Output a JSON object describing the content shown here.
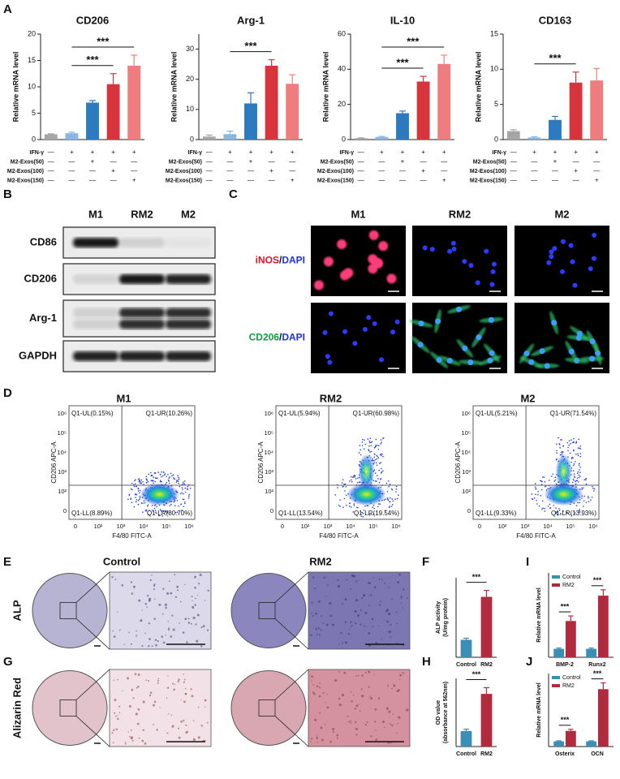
{
  "panel_labels": [
    "A",
    "B",
    "C",
    "D",
    "E",
    "F",
    "G",
    "H",
    "I",
    "J"
  ],
  "chart_data": [
    {
      "type": "bar",
      "title": "CD206",
      "ylabel": "Relative mRNA level",
      "categories": [
        null,
        null,
        null,
        null,
        null
      ],
      "values": [
        1,
        1.2,
        7,
        10.5,
        14
      ],
      "errors": [
        0.1,
        0.2,
        0.4,
        2,
        2
      ],
      "colors": [
        "#a6a6a6",
        "#8ab6e0",
        "#2c7bc0",
        "#d8343c",
        "#f07d7d"
      ],
      "ylim": [
        0,
        20
      ],
      "yticks": [
        0,
        5,
        10,
        15,
        20
      ],
      "condition_labels": [
        "IFN-γ",
        "M2-Exos(50)",
        "M2-Exos(100)",
        "M2-Exos(150)"
      ],
      "conditions": [
        [
          "—",
          "+",
          "+",
          "+",
          "+"
        ],
        [
          "—",
          "—",
          "+",
          "—",
          "—"
        ],
        [
          "—",
          "—",
          "—",
          "+",
          "—"
        ],
        [
          "—",
          "—",
          "—",
          "—",
          "+"
        ]
      ],
      "annotations": [
        {
          "text": "***",
          "from": 1,
          "to": 3
        },
        {
          "text": "***",
          "from": 1,
          "to": 4
        }
      ]
    },
    {
      "type": "bar",
      "title": "Arg-1",
      "ylabel": "Relative mRNA level",
      "categories": [
        null,
        null,
        null,
        null,
        null
      ],
      "values": [
        1,
        1.8,
        12,
        24.5,
        18.5
      ],
      "errors": [
        0.5,
        1,
        3.5,
        2,
        3
      ],
      "colors": [
        "#a6a6a6",
        "#8ab6e0",
        "#2c7bc0",
        "#d8343c",
        "#f07d7d"
      ],
      "ylim": [
        0,
        35
      ],
      "yticks": [
        0,
        10,
        20,
        30
      ],
      "condition_labels": [
        "IFN-γ",
        "M2-Exos(50)",
        "M2-Exos(100)",
        "M2-Exos(150)"
      ],
      "conditions": [
        [
          "—",
          "+",
          "+",
          "+",
          "+"
        ],
        [
          "—",
          "—",
          "+",
          "—",
          "—"
        ],
        [
          "—",
          "—",
          "—",
          "+",
          "—"
        ],
        [
          "—",
          "—",
          "—",
          "—",
          "+"
        ]
      ],
      "annotations": [
        {
          "text": "***",
          "from": 1,
          "to": 3
        }
      ]
    },
    {
      "type": "bar",
      "title": "IL-10",
      "ylabel": "Relative mRNA level",
      "categories": [
        null,
        null,
        null,
        null,
        null
      ],
      "values": [
        0.8,
        1.5,
        15,
        33,
        43
      ],
      "errors": [
        0.2,
        0.3,
        1.2,
        3,
        5
      ],
      "colors": [
        "#a6a6a6",
        "#8ab6e0",
        "#2c7bc0",
        "#d8343c",
        "#f07d7d"
      ],
      "ylim": [
        0,
        60
      ],
      "yticks": [
        0,
        20,
        40,
        60
      ],
      "condition_labels": [
        "IFN-γ",
        "M2-Exos(50)",
        "M2-Exos(100)",
        "M2-Exos(150)"
      ],
      "conditions": [
        [
          "—",
          "+",
          "+",
          "+",
          "+"
        ],
        [
          "—",
          "—",
          "+",
          "—",
          "—"
        ],
        [
          "—",
          "—",
          "—",
          "+",
          "—"
        ],
        [
          "—",
          "—",
          "—",
          "—",
          "+"
        ]
      ],
      "annotations": [
        {
          "text": "***",
          "from": 1,
          "to": 3
        },
        {
          "text": "***",
          "from": 1,
          "to": 4
        }
      ]
    },
    {
      "type": "bar",
      "title": "CD163",
      "ylabel": "Relative mRNA level",
      "categories": [
        null,
        null,
        null,
        null,
        null
      ],
      "values": [
        1.2,
        0.3,
        2.8,
        8.1,
        8.4
      ],
      "errors": [
        0.2,
        0.1,
        0.5,
        1.5,
        1.7
      ],
      "colors": [
        "#a6a6a6",
        "#8ab6e0",
        "#2c7bc0",
        "#d8343c",
        "#f07d7d"
      ],
      "ylim": [
        0,
        15
      ],
      "yticks": [
        0,
        5,
        10,
        15
      ],
      "condition_labels": [
        "IFN-γ",
        "M2-Exos(50)",
        "M2-Exos(100)",
        "M2-Exos(150)"
      ],
      "conditions": [
        [
          "—",
          "+",
          "+",
          "+",
          "+"
        ],
        [
          "—",
          "—",
          "+",
          "—",
          "—"
        ],
        [
          "—",
          "—",
          "—",
          "+",
          "—"
        ],
        [
          "—",
          "—",
          "—",
          "—",
          "+"
        ]
      ],
      "annotations": [
        {
          "text": "***",
          "from": 1,
          "to": 3
        }
      ]
    },
    {
      "type": "bar",
      "ylabel": [
        "ALP activity",
        "(U/mg protein)"
      ],
      "categories": [
        "Control",
        "RM2"
      ],
      "values": [
        5.5,
        19
      ],
      "errors": [
        0.5,
        2
      ],
      "colors": [
        "#3a8fb7",
        "#b22a3e"
      ],
      "ylim": [
        0,
        25
      ],
      "annotations": [
        {
          "text": "***",
          "from": 0,
          "to": 1
        }
      ]
    },
    {
      "type": "bar",
      "ylabel": [
        "OD value",
        "(absorbance at 562nm)"
      ],
      "categories": [
        "Control",
        "RM2"
      ],
      "values": [
        0.25,
        0.85
      ],
      "errors": [
        0.03,
        0.1
      ],
      "colors": [
        "#3a8fb7",
        "#b22a3e"
      ],
      "ylim": [
        0,
        1.1
      ],
      "annotations": [
        {
          "text": "***",
          "from": 0,
          "to": 1
        }
      ]
    },
    {
      "type": "bar",
      "ylabel": "Relative mRNA level",
      "categories": [
        "BMP-2",
        "Runx2"
      ],
      "series": [
        {
          "name": "Control",
          "color": "#3a8fb7",
          "values": [
            1,
            1
          ],
          "errors": [
            0.1,
            0.1
          ]
        },
        {
          "name": "RM2",
          "color": "#b22a3e",
          "values": [
            4.3,
            7.3
          ],
          "errors": [
            0.6,
            0.7
          ]
        }
      ],
      "ylim": [
        0,
        10
      ],
      "annotations": [
        {
          "text": "***",
          "category": 0
        },
        {
          "text": "***",
          "category": 1
        }
      ]
    },
    {
      "type": "bar",
      "ylabel": "Relative mRNA level",
      "categories": [
        "Osterix",
        "OCN"
      ],
      "series": [
        {
          "name": "Control",
          "color": "#3a8fb7",
          "values": [
            1,
            1
          ],
          "errors": [
            0.1,
            0.1
          ]
        },
        {
          "name": "RM2",
          "color": "#b22a3e",
          "values": [
            3,
            11
          ],
          "errors": [
            0.3,
            1.2
          ]
        }
      ],
      "ylim": [
        0,
        14
      ],
      "annotations": [
        {
          "text": "***",
          "category": 0
        },
        {
          "text": "***",
          "category": 1
        }
      ]
    }
  ],
  "blot": {
    "columns": [
      "M1",
      "RM2",
      "M2"
    ],
    "rows": [
      "CD86",
      "CD206",
      "Arg-1",
      "GAPDH"
    ]
  },
  "microscopy": {
    "columns": [
      "M1",
      "RM2",
      "M2"
    ],
    "rows": [
      [
        "iNOS",
        "/",
        "DAPI"
      ],
      [
        "CD206",
        "/",
        "DAPI"
      ]
    ]
  },
  "flow": {
    "xlabel": "F4/80 FITC-A",
    "ylabel": "CD206 APC-A",
    "tick_labels": [
      "0",
      "10²",
      "10³",
      "10⁴",
      "10⁵",
      "10⁶"
    ],
    "plots": [
      {
        "title": "M1",
        "quadrants": [
          "Q1-UL(0.15%)",
          "Q1-UR(10.26%)",
          "Q1-LL(8.89%)",
          "Q1-LR(80.70%)"
        ]
      },
      {
        "title": "RM2",
        "quadrants": [
          "Q1-UL(5.94%)",
          "Q1-UR(60.98%)",
          "Q1-LL(13.54%)",
          "Q1-LR(19.54%)"
        ]
      },
      {
        "title": "M2",
        "quadrants": [
          "Q1-UL(5.21%)",
          "Q1-UR(71.54%)",
          "Q1-LL(9.33%)",
          "Q1-LR(13.93%)"
        ]
      }
    ]
  },
  "staining": {
    "columns": [
      "Control",
      "RM2"
    ],
    "rows": [
      "ALP",
      "Alizarin Red"
    ]
  }
}
